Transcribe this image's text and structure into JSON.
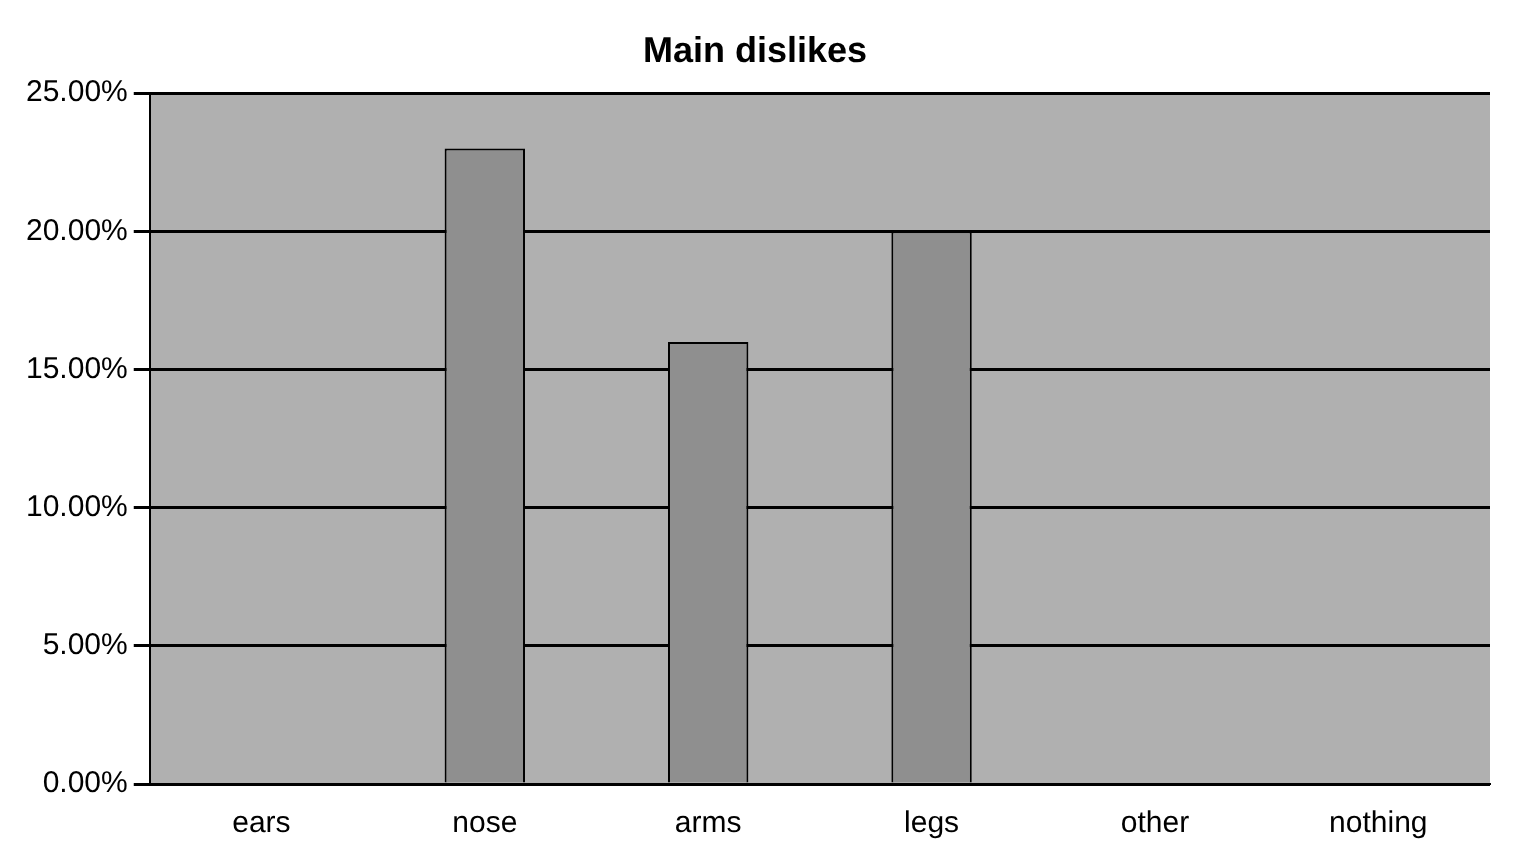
{
  "chart_data": {
    "type": "bar",
    "title": "Main dislikes",
    "categories": [
      "ears",
      "nose",
      "arms",
      "legs",
      "other",
      "nothing"
    ],
    "values": [
      0,
      23,
      16,
      20,
      0,
      0
    ],
    "color": "#8f8f8f",
    "ylim": [
      0,
      25
    ],
    "yticks": [
      {
        "value": 0,
        "label": "0.00%"
      },
      {
        "value": 5,
        "label": "5.00%"
      },
      {
        "value": 10,
        "label": "10.00%"
      },
      {
        "value": 15,
        "label": "15.00%"
      },
      {
        "value": 20,
        "label": "20.00%"
      },
      {
        "value": 25,
        "label": "25.00%"
      }
    ],
    "grid": "y",
    "legend": false
  }
}
